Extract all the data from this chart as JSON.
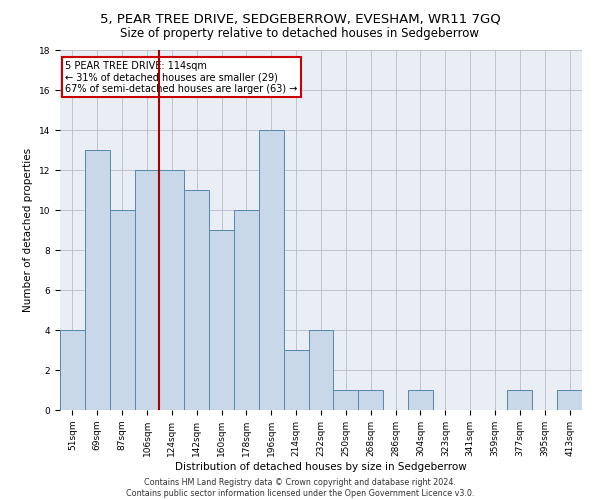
{
  "title": "5, PEAR TREE DRIVE, SEDGEBERROW, EVESHAM, WR11 7GQ",
  "subtitle": "Size of property relative to detached houses in Sedgeberrow",
  "xlabel": "Distribution of detached houses by size in Sedgeberrow",
  "ylabel": "Number of detached properties",
  "bin_labels": [
    "51sqm",
    "69sqm",
    "87sqm",
    "106sqm",
    "124sqm",
    "142sqm",
    "160sqm",
    "178sqm",
    "196sqm",
    "214sqm",
    "232sqm",
    "250sqm",
    "268sqm",
    "286sqm",
    "304sqm",
    "323sqm",
    "341sqm",
    "359sqm",
    "377sqm",
    "395sqm",
    "413sqm"
  ],
  "bar_values": [
    4,
    13,
    10,
    12,
    12,
    11,
    9,
    10,
    14,
    3,
    4,
    1,
    1,
    0,
    1,
    0,
    0,
    0,
    1,
    0,
    1
  ],
  "bar_color": "#c8d8e8",
  "bar_edgecolor": "#5588aa",
  "property_line_x": 3.5,
  "annotation_text": "5 PEAR TREE DRIVE: 114sqm\n← 31% of detached houses are smaller (29)\n67% of semi-detached houses are larger (63) →",
  "annotation_box_color": "#ffffff",
  "annotation_box_edgecolor": "#cc0000",
  "vline_color": "#aa0000",
  "ylim": [
    0,
    18
  ],
  "yticks": [
    0,
    2,
    4,
    6,
    8,
    10,
    12,
    14,
    16,
    18
  ],
  "footer_text": "Contains HM Land Registry data © Crown copyright and database right 2024.\nContains public sector information licensed under the Open Government Licence v3.0.",
  "background_color": "#e8eef4",
  "grid_color": "#bbbbcc",
  "title_fontsize": 9.5,
  "subtitle_fontsize": 8.5,
  "axis_fontsize": 7.5,
  "tick_fontsize": 6.5,
  "footer_fontsize": 5.8
}
